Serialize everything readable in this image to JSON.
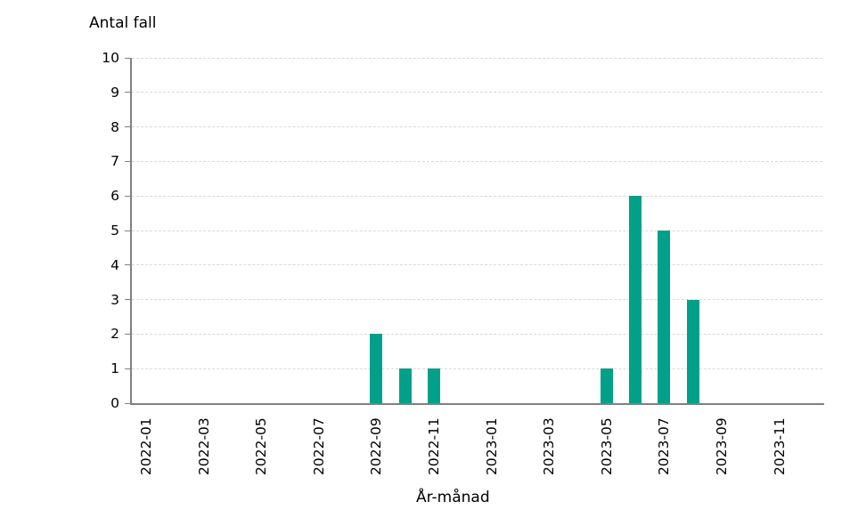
{
  "chart_data": {
    "type": "bar",
    "title": "Antal fall",
    "ylabel": "Antal fall",
    "xlabel": "År-månad",
    "categories": [
      "2022-01",
      "2022-02",
      "2022-03",
      "2022-04",
      "2022-05",
      "2022-06",
      "2022-07",
      "2022-08",
      "2022-09",
      "2022-10",
      "2022-11",
      "2022-12",
      "2023-01",
      "2023-02",
      "2023-03",
      "2023-04",
      "2023-05",
      "2023-06",
      "2023-07",
      "2023-08",
      "2023-09",
      "2023-10",
      "2023-11",
      "2023-12"
    ],
    "values": [
      0,
      0,
      0,
      0,
      0,
      0,
      0,
      0,
      2,
      1,
      1,
      0,
      0,
      0,
      0,
      0,
      1,
      6,
      5,
      3,
      0,
      0,
      0,
      0
    ],
    "x_tick_labels": [
      "2022-01",
      "2022-03",
      "2022-05",
      "2022-07",
      "2022-09",
      "2022-11",
      "2023-01",
      "2023-03",
      "2023-05",
      "2023-07",
      "2023-09",
      "2023-11"
    ],
    "x_label_every": 2,
    "ylim": [
      0,
      10
    ],
    "ytick_step": 1,
    "grid": true,
    "legend": null,
    "colors": {
      "bar": "#00A188",
      "gridline": "#D9D9D9",
      "axis": "#808080",
      "text": "#000000",
      "background": "#FFFFFF"
    }
  }
}
